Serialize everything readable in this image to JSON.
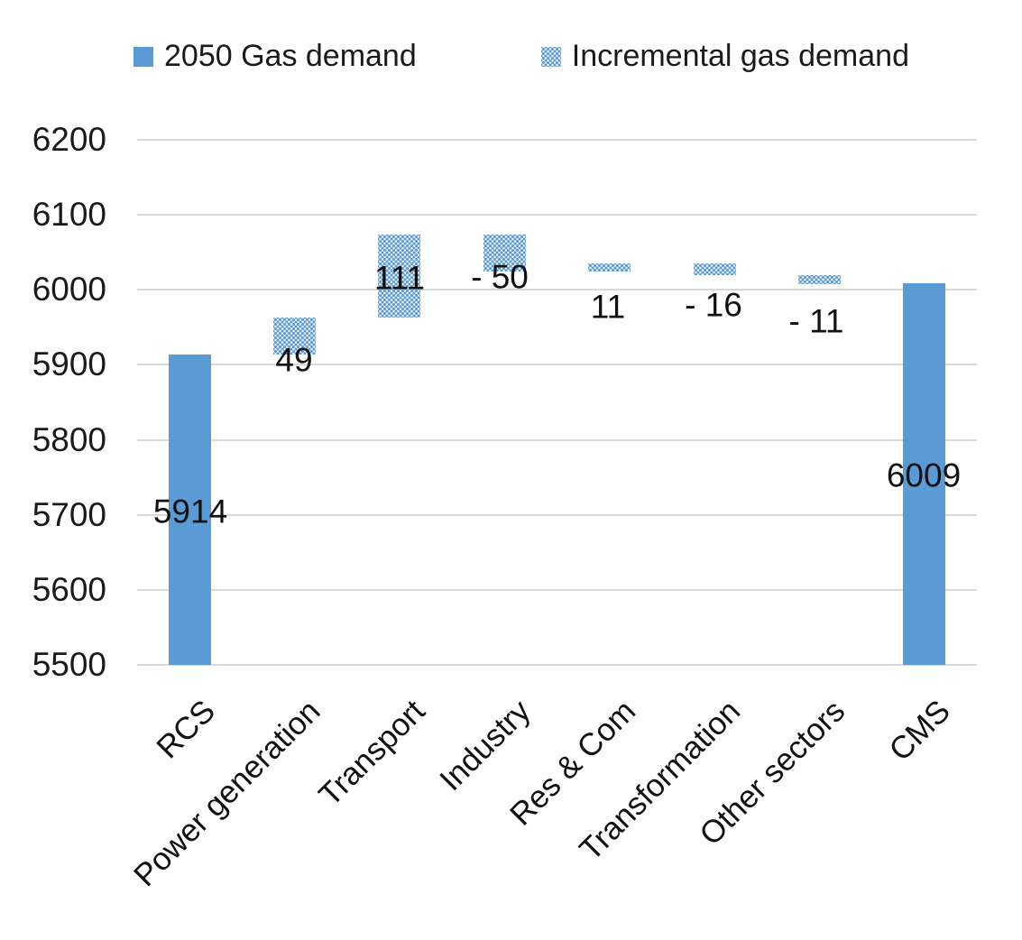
{
  "legend": {
    "items": [
      {
        "label": "2050 Gas demand",
        "swatch": "solid-square-icon"
      },
      {
        "label": "Incremental gas demand",
        "swatch": "dotted-square-icon"
      }
    ]
  },
  "chart_data": {
    "type": "bar",
    "subtype": "waterfall",
    "title": "",
    "xlabel": "",
    "ylabel": "",
    "categories": [
      "RCS",
      "Power generation",
      "Transport",
      "Industry",
      "Res & Com",
      "Transformation",
      "Other sectors",
      "CMS"
    ],
    "series": [
      {
        "name": "2050 Gas demand",
        "style": "solid",
        "role": "total",
        "values": [
          5914,
          null,
          null,
          null,
          null,
          null,
          null,
          6009
        ]
      },
      {
        "name": "Incremental gas demand",
        "style": "dotted",
        "role": "delta",
        "values": [
          null,
          49,
          111,
          -50,
          11,
          -16,
          -11,
          null
        ]
      }
    ],
    "value_labels": [
      "5914",
      "49",
      "111",
      "- 50",
      "11",
      "- 16",
      "- 11",
      "6009"
    ],
    "ylim": [
      5500,
      6200
    ],
    "yticks": [
      6200,
      6100,
      6000,
      5900,
      5800,
      5700,
      5600,
      5500
    ],
    "grid": true,
    "legend_position": "top",
    "colors": {
      "bar_fill": "#5b9bd5",
      "gridline": "#d9d9d9",
      "text": "#1a1a1a",
      "background": "#ffffff"
    }
  }
}
